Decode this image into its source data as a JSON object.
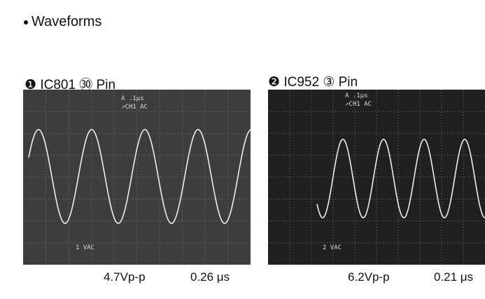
{
  "header": {
    "title": "Waveforms"
  },
  "panels": [
    {
      "number": "❶",
      "label": "IC801 ㉚ Pin",
      "screen": {
        "timebase": "A .1μs",
        "channel": "↗CH1  AC",
        "scale": "1 VAC"
      },
      "amplitude": "4.7Vp-p",
      "period": "0.26 μs"
    },
    {
      "number": "❷",
      "label": "IC952 ③ Pin",
      "screen": {
        "timebase": "A .1μs",
        "channel": "↗CH1  AC",
        "scale": "2 VAC"
      },
      "amplitude": "6.2Vp-p",
      "period": "0.21 μs"
    }
  ]
}
